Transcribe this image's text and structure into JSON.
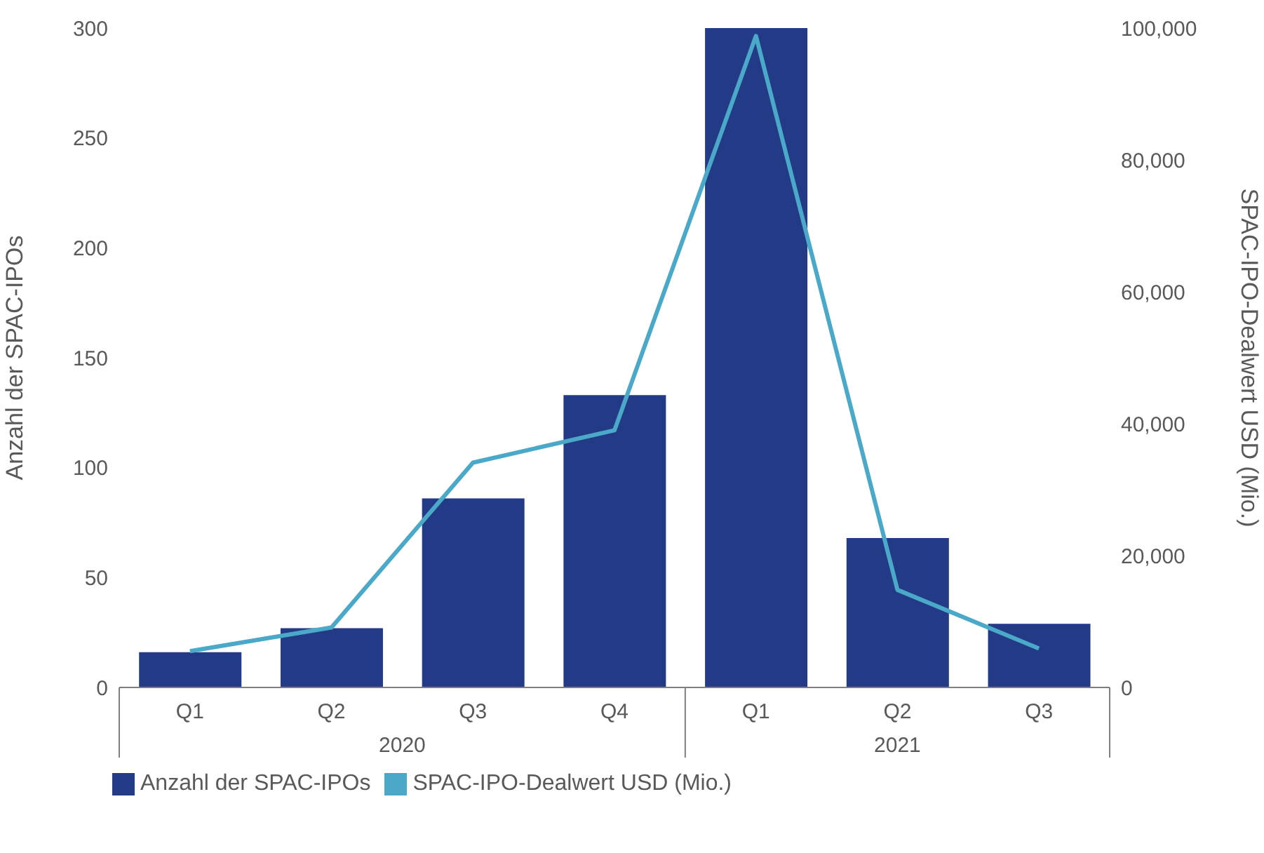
{
  "chart_data": {
    "type": "bar",
    "categories": [
      "Q1",
      "Q2",
      "Q3",
      "Q4",
      "Q1",
      "Q2",
      "Q3"
    ],
    "annotations": [
      "2020",
      "2021"
    ],
    "ylabel": "Anzahl der SPAC-IPOs",
    "y2label": "SPAC-IPO-Dealwert USD (Mio.)",
    "series": [
      {
        "name": "Anzahl der SPAC-IPOs",
        "color": "#233a86",
        "values": [
          16,
          27,
          86,
          133,
          300,
          68,
          29
        ]
      },
      {
        "name": "SPAC-IPO-Dealwert USD (Mio.)",
        "type": "line",
        "axis": "y2",
        "color": "#4aa8c8",
        "marker": "none",
        "values": [
          5500,
          9100,
          34100,
          39000,
          98800,
          14800,
          5900
        ]
      }
    ],
    "ylim": [
      0,
      300
    ],
    "yticks": [
      0,
      50,
      100,
      150,
      200,
      250,
      300
    ],
    "y2lim": [
      0,
      100000
    ],
    "y2ticks": [
      {
        "value": 0,
        "label": "0"
      },
      {
        "value": 20000,
        "label": "20,000"
      },
      {
        "value": 40000,
        "label": "40,000"
      },
      {
        "value": 60000,
        "label": "60,000"
      },
      {
        "value": 80000,
        "label": "80,000"
      },
      {
        "value": 100000,
        "label": "100,000"
      }
    ],
    "grid": false,
    "legend": "bottom left"
  }
}
